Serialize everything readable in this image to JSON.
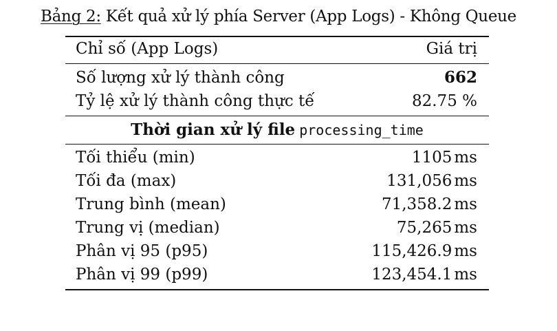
{
  "caption": {
    "label": "Bảng 2:",
    "text": "Kết quả xử lý phía Server (App Logs) - Không Queue"
  },
  "table": {
    "header": {
      "metric": "Chỉ số (App Logs)",
      "value": "Giá trị"
    },
    "summary_rows": [
      {
        "label": "Số lượng xử lý thành công",
        "value": "662"
      },
      {
        "label": "Tỷ lệ xử lý thành công thực tế",
        "value": "82.75 %"
      }
    ],
    "section": {
      "title": "Thời gian xử lý file",
      "code": "processing_time"
    },
    "time_rows": [
      {
        "label": "Tối thiểu (min)",
        "value": "1105",
        "unit": "ms"
      },
      {
        "label": "Tối đa (max)",
        "value": "131,056",
        "unit": "ms"
      },
      {
        "label": "Trung bình (mean)",
        "value": "71,358.2",
        "unit": "ms"
      },
      {
        "label": "Trung vị (median)",
        "value": "75,265",
        "unit": "ms"
      },
      {
        "label": "Phân vị 95 (p95)",
        "value": "115,426.9",
        "unit": "ms"
      },
      {
        "label": "Phân vị 99 (p99)",
        "value": "123,454.1",
        "unit": "ms"
      }
    ]
  }
}
